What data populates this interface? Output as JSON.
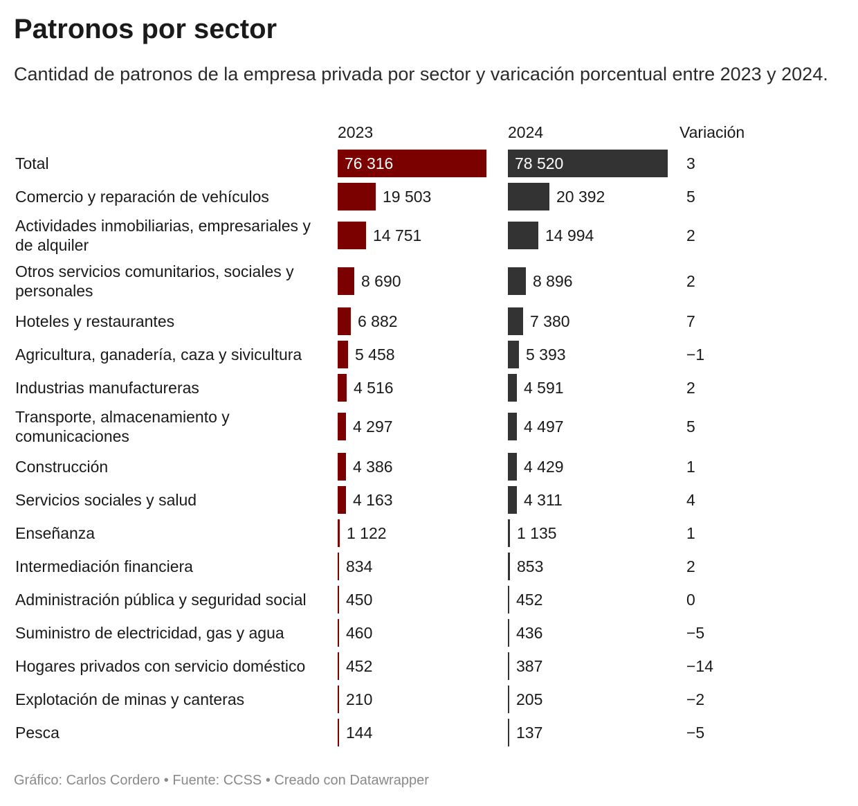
{
  "title": "Patronos por sector",
  "subtitle": "Cantidad de patronos de la empresa privada por sector y varicación porcentual entre 2023 y 2024.",
  "columns": {
    "y2023": "2023",
    "y2024": "2024",
    "variation": "Variación"
  },
  "colors": {
    "y2023": "#7b0000",
    "y2024": "#333333"
  },
  "footer": {
    "graphic": "Gráfico: Carlos Cordero",
    "sep1": " • ",
    "source": "Fuente: CCSS",
    "sep2": " • ",
    "created": "Creado con Datawrapper"
  },
  "chart_data": {
    "type": "bar",
    "title": "Patronos por sector",
    "categories": [
      "Total",
      "Comercio y reparación de vehículos",
      "Actividades inmobiliarias, empresariales y de alquiler",
      "Otros servicios comunitarios, sociales y personales",
      "Hoteles y restaurantes",
      "Agricultura, ganadería, caza y sivicultura",
      "Industrias manufactureras",
      "Transporte, almacenamiento y comunicaciones",
      "Construcción",
      "Servicios sociales y salud",
      "Enseñanza",
      "Intermediación financiera",
      "Administración pública y seguridad social",
      "Suministro de electricidad, gas y agua",
      "Hogares privados con servicio doméstico",
      "Explotación de minas y canteras",
      "Pesca"
    ],
    "series": [
      {
        "name": "2023",
        "values": [
          76316,
          19503,
          14751,
          8690,
          6882,
          5458,
          4516,
          4297,
          4386,
          4163,
          1122,
          834,
          450,
          460,
          452,
          210,
          144
        ],
        "labels": [
          "76 316",
          "19 503",
          "14 751",
          "8 690",
          "6 882",
          "5 458",
          "4 516",
          "4 297",
          "4 386",
          "4 163",
          "1 122",
          "834",
          "450",
          "460",
          "452",
          "210",
          "144"
        ]
      },
      {
        "name": "2024",
        "values": [
          78520,
          20392,
          14994,
          8896,
          7380,
          5393,
          4591,
          4497,
          4429,
          4311,
          1135,
          853,
          452,
          436,
          387,
          205,
          137
        ],
        "labels": [
          "78 520",
          "20 392",
          "14 994",
          "8 896",
          "7 380",
          "5 393",
          "4 591",
          "4 497",
          "4 429",
          "4 311",
          "1 135",
          "853",
          "452",
          "436",
          "387",
          "205",
          "137"
        ]
      },
      {
        "name": "Variación",
        "values": [
          3,
          5,
          2,
          2,
          7,
          -1,
          2,
          5,
          1,
          4,
          1,
          2,
          0,
          -5,
          -14,
          -2,
          -5
        ],
        "labels": [
          "3",
          "5",
          "2",
          "2",
          "7",
          "−1",
          "2",
          "5",
          "1",
          "4",
          "1",
          "2",
          "0",
          "−5",
          "−14",
          "−2",
          "−5"
        ]
      }
    ]
  }
}
